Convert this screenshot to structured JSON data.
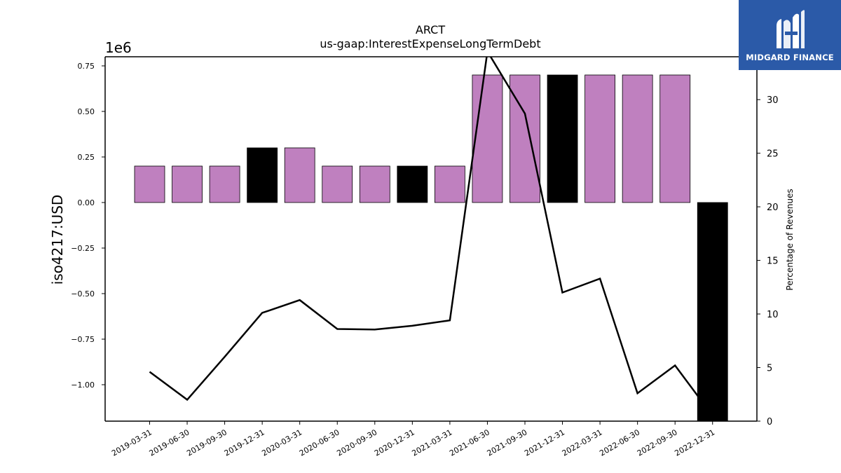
{
  "chart_data": {
    "type": "bar",
    "title": "ARCT",
    "subtitle": "us-gaap:InterestExpenseLongTermDebt",
    "ylabel": "iso4217:USD",
    "y_offset_text": "1e6",
    "y2label": "Percentage of Revenues",
    "ylim": [
      -1200000,
      800000
    ],
    "y2lim": [
      0,
      34
    ],
    "y_ticks": [
      -1.0,
      -0.75,
      -0.5,
      -0.25,
      0.0,
      0.25,
      0.5,
      0.75
    ],
    "y_tick_labels": [
      "−1.00",
      "−0.75",
      "−0.50",
      "−0.25",
      "0.00",
      "0.25",
      "0.50",
      "0.75"
    ],
    "y2_ticks": [
      0,
      5,
      10,
      15,
      20,
      25,
      30
    ],
    "y2_tick_labels": [
      "0",
      "5",
      "10",
      "15",
      "20",
      "25",
      "30"
    ],
    "categories": [
      "2019-03-31",
      "2019-06-30",
      "2019-09-30",
      "2019-12-31",
      "2020-03-31",
      "2020-06-30",
      "2020-09-30",
      "2020-12-31",
      "2021-03-31",
      "2021-06-30",
      "2021-09-30",
      "2021-12-31",
      "2022-03-31",
      "2022-06-30",
      "2022-09-30",
      "2022-12-31"
    ],
    "series": [
      {
        "type": "bar",
        "axis": "left",
        "values": [
          200000,
          200000,
          200000,
          300000,
          300000,
          200000,
          200000,
          200000,
          200000,
          700000,
          700000,
          700000,
          700000,
          700000,
          700000,
          -1200000
        ],
        "highlight": [
          false,
          false,
          false,
          true,
          false,
          false,
          false,
          true,
          false,
          false,
          false,
          true,
          false,
          false,
          false,
          true
        ]
      },
      {
        "type": "line",
        "axis": "right",
        "values": [
          4.6,
          2.0,
          6.0,
          10.1,
          11.3,
          8.6,
          8.55,
          8.9,
          9.4,
          34.5,
          28.7,
          12.0,
          13.3,
          2.6,
          5.2,
          0.5
        ]
      }
    ],
    "colors": {
      "bar": "#bf80bf",
      "bar_highlight": "#000000",
      "line": "#000000"
    },
    "grid": false
  },
  "logo": {
    "text": "MIDGARD FINANCE"
  }
}
